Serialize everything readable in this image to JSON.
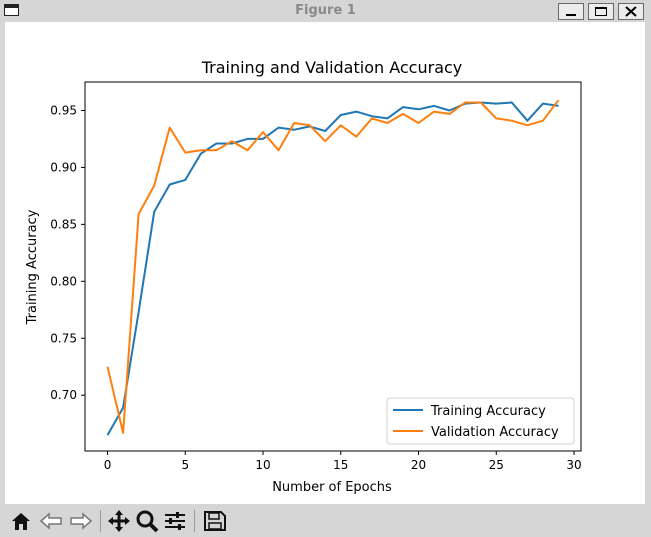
{
  "window": {
    "title": "Figure 1"
  },
  "toolbar": {
    "icons": [
      "home-icon",
      "back-icon",
      "forward-icon",
      "pan-icon",
      "zoom-icon",
      "configure-subplots-icon",
      "save-icon"
    ]
  },
  "colors": {
    "training": "#1f77b4",
    "validation": "#ff7f0e"
  },
  "chart_data": {
    "type": "line",
    "title": "Training and Validation Accuracy",
    "xlabel": "Number of Epochs",
    "ylabel": "Training Accuracy",
    "xlim": [
      -1.45,
      30.45
    ],
    "ylim": [
      0.651,
      0.975
    ],
    "xticks": [
      "0",
      "5",
      "10",
      "15",
      "20",
      "25",
      "30"
    ],
    "yticks": [
      "0.70",
      "0.75",
      "0.80",
      "0.85",
      "0.90",
      "0.95"
    ],
    "grid": false,
    "legend_position": "lower-right",
    "x": [
      0,
      1,
      2,
      3,
      4,
      5,
      6,
      7,
      8,
      9,
      10,
      11,
      12,
      13,
      14,
      15,
      16,
      17,
      18,
      19,
      20,
      21,
      22,
      23,
      24,
      25,
      26,
      27,
      28,
      29
    ],
    "series": [
      {
        "name": "Training Accuracy",
        "values": [
          0.665,
          0.689,
          0.773,
          0.861,
          0.885,
          0.889,
          0.912,
          0.921,
          0.921,
          0.925,
          0.925,
          0.935,
          0.933,
          0.936,
          0.932,
          0.946,
          0.949,
          0.945,
          0.943,
          0.953,
          0.951,
          0.954,
          0.95,
          0.956,
          0.957,
          0.956,
          0.957,
          0.941,
          0.956,
          0.954
        ]
      },
      {
        "name": "Validation Accuracy",
        "values": [
          0.725,
          0.667,
          0.859,
          0.884,
          0.935,
          0.913,
          0.915,
          0.915,
          0.923,
          0.915,
          0.931,
          0.915,
          0.939,
          0.937,
          0.923,
          0.937,
          0.927,
          0.943,
          0.939,
          0.947,
          0.939,
          0.949,
          0.947,
          0.957,
          0.957,
          0.943,
          0.941,
          0.937,
          0.941,
          0.959
        ]
      }
    ]
  }
}
